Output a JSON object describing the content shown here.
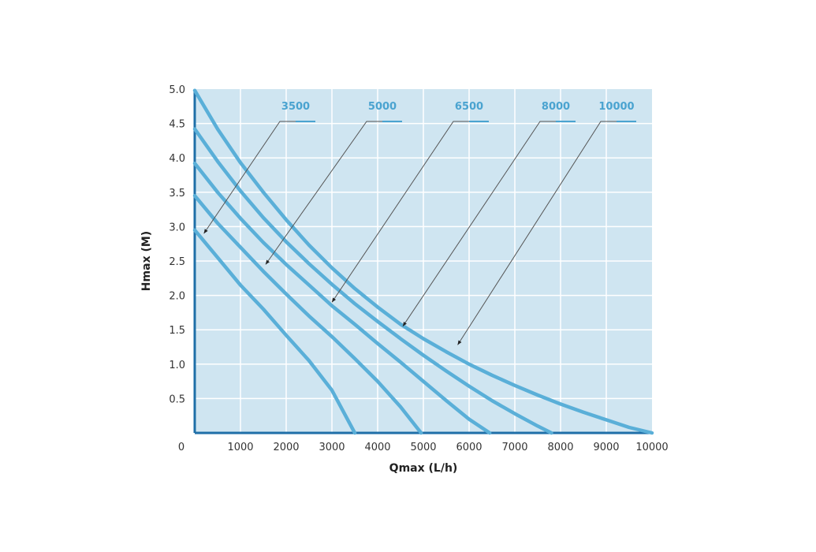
{
  "chart_data": {
    "type": "line",
    "title": "",
    "xlabel": "Qmax (L/h)",
    "ylabel": "Hmax (M)",
    "xlim": [
      0,
      10000
    ],
    "ylim": [
      0,
      5.0
    ],
    "x_ticks": [
      "1000",
      "2000",
      "3000",
      "4000",
      "5000",
      "6000",
      "7000",
      "8000",
      "9000",
      "10000"
    ],
    "y_ticks": [
      "0.5",
      "1.0",
      "1.5",
      "2.0",
      "2.5",
      "3.0",
      "3.5",
      "4.0",
      "4.5",
      "5.0"
    ],
    "origin_label": "0",
    "grid": true,
    "legend": "callout labels at top",
    "colors": {
      "plot_background": "#cfe5f1",
      "grid": "#ffffff",
      "series": "#5aafd8",
      "label": "#4aa3d0",
      "leader": "#555555",
      "axis": "#1f6fa8"
    },
    "series": [
      {
        "name": "3500",
        "points": [
          [
            0,
            2.95
          ],
          [
            500,
            2.55
          ],
          [
            1000,
            2.15
          ],
          [
            1500,
            1.8
          ],
          [
            2000,
            1.42
          ],
          [
            2500,
            1.05
          ],
          [
            3000,
            0.62
          ],
          [
            3500,
            0.0
          ]
        ],
        "callout": [
          200,
          2.9
        ]
      },
      {
        "name": "5000",
        "points": [
          [
            0,
            3.45
          ],
          [
            500,
            3.05
          ],
          [
            1000,
            2.7
          ],
          [
            1500,
            2.35
          ],
          [
            2000,
            2.02
          ],
          [
            2500,
            1.7
          ],
          [
            3000,
            1.4
          ],
          [
            3500,
            1.08
          ],
          [
            4000,
            0.75
          ],
          [
            4500,
            0.38
          ],
          [
            4950,
            0.0
          ]
        ],
        "callout": [
          1550,
          2.45
        ]
      },
      {
        "name": "6500",
        "points": [
          [
            0,
            3.92
          ],
          [
            500,
            3.5
          ],
          [
            1000,
            3.12
          ],
          [
            1500,
            2.77
          ],
          [
            2000,
            2.45
          ],
          [
            2500,
            2.15
          ],
          [
            3000,
            1.85
          ],
          [
            3500,
            1.58
          ],
          [
            4000,
            1.3
          ],
          [
            4500,
            1.03
          ],
          [
            5000,
            0.75
          ],
          [
            5500,
            0.47
          ],
          [
            6000,
            0.2
          ],
          [
            6450,
            0.0
          ]
        ],
        "callout": [
          3000,
          1.9
        ]
      },
      {
        "name": "8000",
        "points": [
          [
            0,
            4.42
          ],
          [
            500,
            3.95
          ],
          [
            1000,
            3.52
          ],
          [
            1500,
            3.13
          ],
          [
            2000,
            2.78
          ],
          [
            2500,
            2.46
          ],
          [
            3000,
            2.16
          ],
          [
            3500,
            1.88
          ],
          [
            4000,
            1.62
          ],
          [
            4500,
            1.37
          ],
          [
            5000,
            1.13
          ],
          [
            5500,
            0.9
          ],
          [
            6000,
            0.68
          ],
          [
            6500,
            0.47
          ],
          [
            7000,
            0.28
          ],
          [
            7500,
            0.1
          ],
          [
            7800,
            0.0
          ]
        ],
        "callout": [
          4550,
          1.55
        ]
      },
      {
        "name": "10000",
        "points": [
          [
            0,
            4.98
          ],
          [
            500,
            4.42
          ],
          [
            1000,
            3.93
          ],
          [
            1500,
            3.5
          ],
          [
            2000,
            3.1
          ],
          [
            2500,
            2.73
          ],
          [
            3000,
            2.4
          ],
          [
            3500,
            2.1
          ],
          [
            4000,
            1.83
          ],
          [
            4500,
            1.58
          ],
          [
            5000,
            1.37
          ],
          [
            5500,
            1.18
          ],
          [
            6000,
            1.0
          ],
          [
            6500,
            0.84
          ],
          [
            7000,
            0.69
          ],
          [
            7500,
            0.55
          ],
          [
            8000,
            0.42
          ],
          [
            8500,
            0.3
          ],
          [
            9000,
            0.19
          ],
          [
            9500,
            0.08
          ],
          [
            10000,
            0.0
          ]
        ],
        "callout": [
          5750,
          1.28
        ]
      }
    ]
  }
}
